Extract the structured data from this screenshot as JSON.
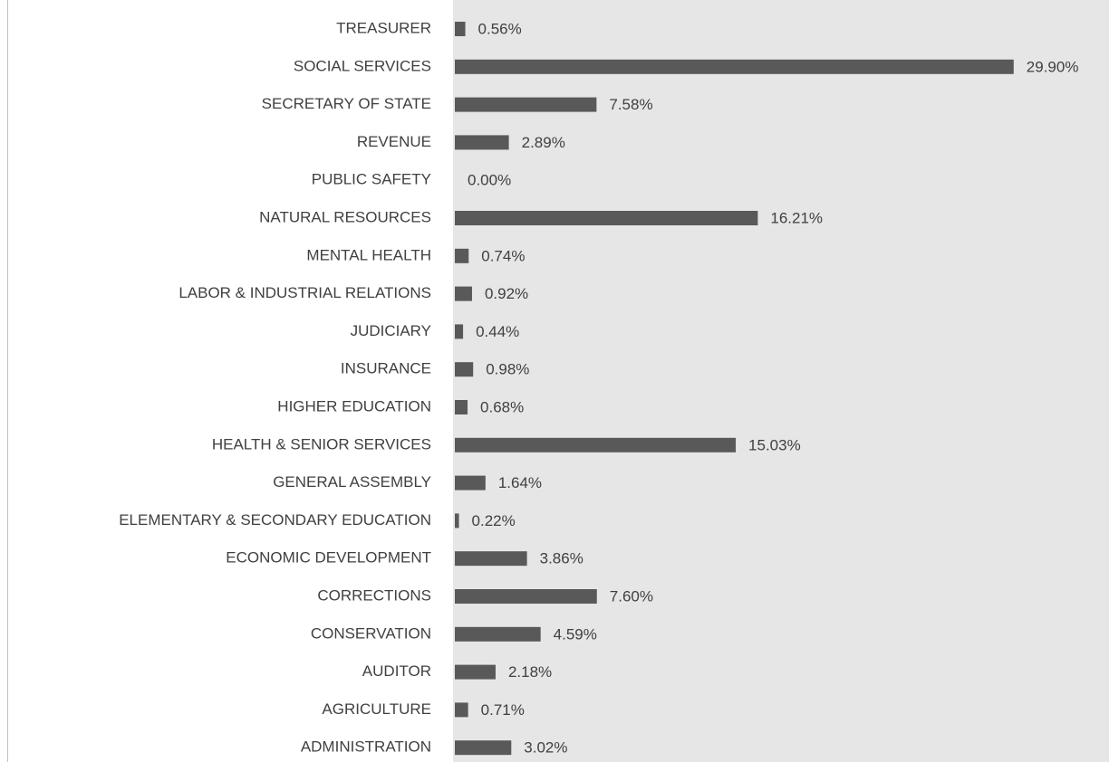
{
  "chart_data": {
    "type": "bar",
    "orientation": "horizontal",
    "categories": [
      "TREASURER",
      "SOCIAL SERVICES",
      "SECRETARY OF STATE",
      "REVENUE",
      "PUBLIC SAFETY",
      "NATURAL RESOURCES",
      "MENTAL HEALTH",
      "LABOR & INDUSTRIAL RELATIONS",
      "JUDICIARY",
      "INSURANCE",
      "HIGHER EDUCATION",
      "HEALTH & SENIOR SERVICES",
      "GENERAL ASSEMBLY",
      "ELEMENTARY & SECONDARY EDUCATION",
      "ECONOMIC DEVELOPMENT",
      "CORRECTIONS",
      "CONSERVATION",
      "AUDITOR",
      "AGRICULTURE",
      "ADMINISTRATION"
    ],
    "values": [
      0.56,
      29.9,
      7.58,
      2.89,
      0,
      16.21,
      0.74,
      0.92,
      0.44,
      0.98,
      0.68,
      15.03,
      1.64,
      0.22,
      3.86,
      7.6,
      4.59,
      2.18,
      0.71,
      3.02
    ],
    "value_labels": [
      "0.56%",
      "29.90%",
      "7.58%",
      "2.89%",
      "0.00%",
      "16.21%",
      "0.74%",
      "0.92%",
      "0.44%",
      "0.98%",
      "0.68%",
      "15.03%",
      "1.64%",
      "0.22%",
      "3.86%",
      "7.60%",
      "4.59%",
      "2.18%",
      "0.71%",
      "3.02%"
    ],
    "color": "#595959",
    "xlim": [
      0,
      35
    ]
  }
}
